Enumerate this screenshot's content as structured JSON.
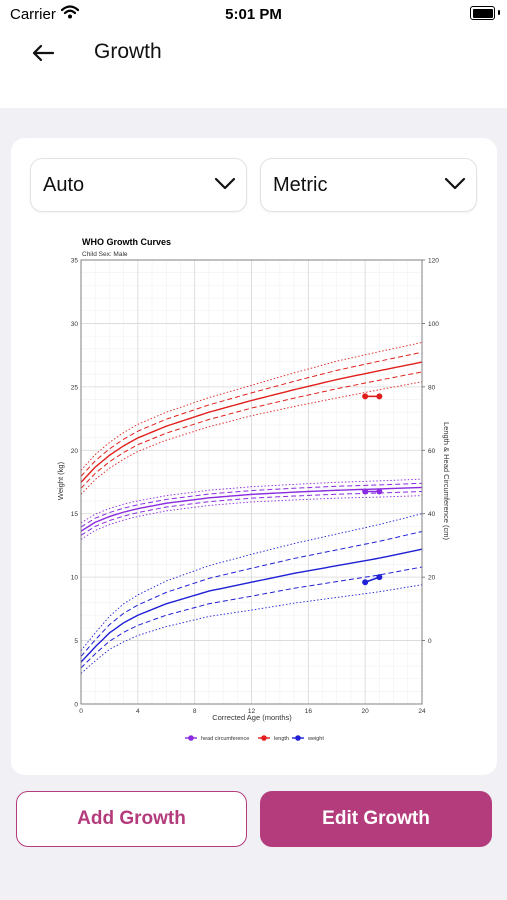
{
  "status_bar": {
    "carrier": "Carrier",
    "time": "5:01 PM"
  },
  "header": {
    "title": "Growth",
    "back_icon": "arrow-left-icon"
  },
  "filters": {
    "mode_value": "Auto",
    "unit_value": "Metric"
  },
  "actions": {
    "add_label": "Add Growth",
    "edit_label": "Edit Growth"
  },
  "colors": {
    "accent": "#b43c7d",
    "length": "#e0201c",
    "head": "#8a2be2",
    "weight": "#1f1fd6"
  },
  "chart_data": {
    "type": "line",
    "title": "WHO Growth Curves",
    "subtitle": "Child Sex:  Male",
    "xlabel": "Corrected Age (months)",
    "ylabel": "Weight (kg)",
    "y2label": "Length & Head Circumference (cm)",
    "xlim": [
      0,
      24
    ],
    "ylim": [
      0,
      35
    ],
    "y2lim": [
      -20,
      120
    ],
    "x_ticks": [
      0,
      4,
      8,
      12,
      16,
      20,
      24
    ],
    "y_ticks": [
      0,
      5,
      10,
      15,
      20,
      25,
      30,
      35
    ],
    "y2_ticks": [
      0,
      20,
      40,
      60,
      80,
      100,
      120
    ],
    "grid": true,
    "legend_position": "bottom",
    "legend": [
      "head circumference",
      "length",
      "weight"
    ],
    "reference_curves": [
      {
        "name": "length",
        "axis": "y2",
        "median": [
          [
            0,
            49.9
          ],
          [
            1,
            54.7
          ],
          [
            2,
            58.4
          ],
          [
            3,
            61.4
          ],
          [
            4,
            63.9
          ],
          [
            6,
            67.6
          ],
          [
            9,
            72.0
          ],
          [
            12,
            75.7
          ],
          [
            15,
            79.1
          ],
          [
            18,
            82.3
          ],
          [
            21,
            85.1
          ],
          [
            24,
            87.8
          ]
        ],
        "sd": [
          [
            0,
            1.9
          ],
          [
            3,
            2.1
          ],
          [
            6,
            2.2
          ],
          [
            12,
            2.4
          ],
          [
            18,
            2.9
          ],
          [
            24,
            3.1
          ]
        ]
      },
      {
        "name": "head circumference",
        "axis": "y2",
        "median": [
          [
            0,
            34.5
          ],
          [
            1,
            37.3
          ],
          [
            2,
            39.1
          ],
          [
            3,
            40.5
          ],
          [
            4,
            41.6
          ],
          [
            6,
            43.3
          ],
          [
            9,
            45.0
          ],
          [
            12,
            46.1
          ],
          [
            15,
            46.8
          ],
          [
            18,
            47.4
          ],
          [
            21,
            47.8
          ],
          [
            24,
            48.3
          ]
        ],
        "sd": [
          [
            0,
            1.3
          ],
          [
            6,
            1.2
          ],
          [
            12,
            1.2
          ],
          [
            24,
            1.3
          ]
        ]
      },
      {
        "name": "weight",
        "axis": "y",
        "median": [
          [
            0,
            3.3
          ],
          [
            1,
            4.5
          ],
          [
            2,
            5.6
          ],
          [
            3,
            6.4
          ],
          [
            4,
            7.0
          ],
          [
            6,
            7.9
          ],
          [
            9,
            8.9
          ],
          [
            12,
            9.6
          ],
          [
            15,
            10.3
          ],
          [
            18,
            10.9
          ],
          [
            21,
            11.5
          ],
          [
            24,
            12.2
          ]
        ],
        "sd": [
          [
            0,
            0.45
          ],
          [
            3,
            0.75
          ],
          [
            6,
            0.9
          ],
          [
            12,
            1.1
          ],
          [
            18,
            1.25
          ],
          [
            24,
            1.4
          ]
        ]
      }
    ],
    "series": [
      {
        "name": "length",
        "axis": "y2",
        "points": [
          [
            20,
            77
          ],
          [
            21,
            77
          ]
        ]
      },
      {
        "name": "head circumference",
        "axis": "y2",
        "points": [
          [
            20,
            47
          ],
          [
            21,
            47
          ]
        ]
      },
      {
        "name": "weight",
        "axis": "y",
        "points": [
          [
            20,
            9.6
          ],
          [
            21,
            10.0
          ]
        ]
      }
    ]
  }
}
